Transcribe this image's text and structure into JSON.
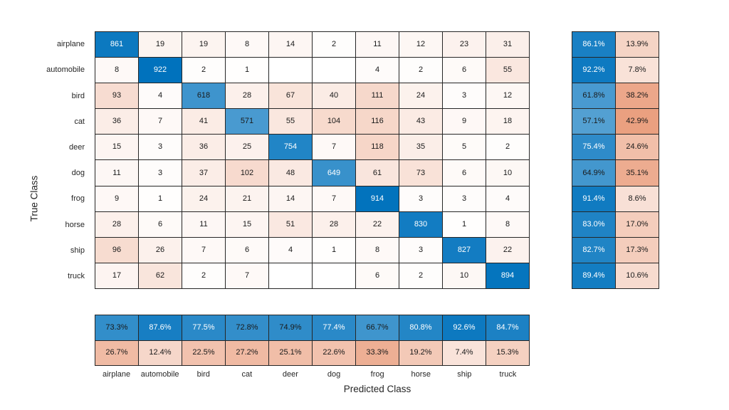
{
  "chart_data": {
    "type": "heatmap",
    "subtype": "confusion-matrix",
    "xlabel": "Predicted Class",
    "ylabel": "True Class",
    "classes": [
      "airplane",
      "automobile",
      "bird",
      "cat",
      "deer",
      "dog",
      "frog",
      "horse",
      "ship",
      "truck"
    ],
    "matrix": [
      [
        861,
        19,
        19,
        8,
        14,
        2,
        11,
        12,
        23,
        31
      ],
      [
        8,
        922,
        2,
        1,
        null,
        null,
        4,
        2,
        6,
        55
      ],
      [
        93,
        4,
        618,
        28,
        67,
        40,
        111,
        24,
        3,
        12
      ],
      [
        36,
        7,
        41,
        571,
        55,
        104,
        116,
        43,
        9,
        18
      ],
      [
        15,
        3,
        36,
        25,
        754,
        7,
        118,
        35,
        5,
        2
      ],
      [
        11,
        3,
        37,
        102,
        48,
        649,
        61,
        73,
        6,
        10
      ],
      [
        9,
        1,
        24,
        21,
        14,
        7,
        914,
        3,
        3,
        4
      ],
      [
        28,
        6,
        11,
        15,
        51,
        28,
        22,
        830,
        1,
        8
      ],
      [
        96,
        26,
        7,
        6,
        4,
        1,
        8,
        3,
        827,
        22
      ],
      [
        17,
        62,
        2,
        7,
        null,
        null,
        6,
        2,
        10,
        894
      ]
    ],
    "row_summary": {
      "correct_pct": [
        86.1,
        92.2,
        61.8,
        57.1,
        75.4,
        64.9,
        91.4,
        83.0,
        82.7,
        89.4
      ],
      "incorrect_pct": [
        13.9,
        7.8,
        38.2,
        42.9,
        24.6,
        35.1,
        8.6,
        17.0,
        17.3,
        10.6
      ]
    },
    "col_summary": {
      "correct_pct": [
        73.3,
        87.6,
        77.5,
        72.8,
        74.9,
        77.4,
        66.7,
        80.8,
        92.6,
        84.7
      ],
      "incorrect_pct": [
        26.7,
        12.4,
        22.5,
        27.2,
        25.1,
        22.6,
        33.3,
        19.2,
        7.4,
        15.3
      ]
    },
    "colors": {
      "diagonal_base": "#0072BD",
      "off_diagonal_base": "#D95319",
      "grid_line": "#262626",
      "text_dark": "#1a1a1a",
      "text_light": "#ffffff",
      "background": "#ffffff"
    },
    "layout": {
      "legend": "none",
      "row_summary_position": "right",
      "col_summary_position": "bottom"
    }
  }
}
